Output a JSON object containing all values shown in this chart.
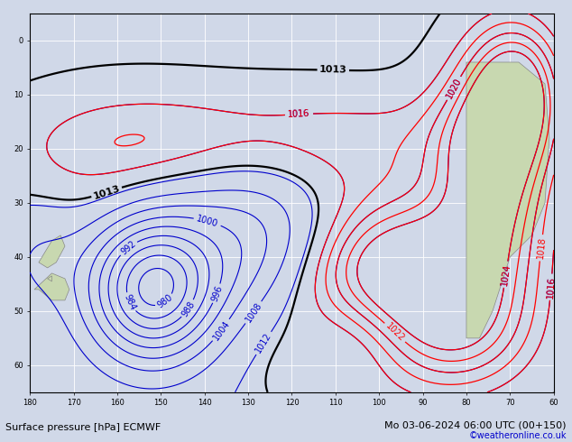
{
  "title_left": "Surface pressure [hPa] ECMWF",
  "title_right": "Mo 03-06-2024 06:00 UTC (00+150)",
  "copyright": "©weatheronline.co.uk",
  "bg_color": "#d0d8e8",
  "land_color": "#c8d8b0",
  "grid_color": "#ffffff",
  "lon_min": -180,
  "lon_max": -60,
  "lat_min": -65,
  "lat_max": 5,
  "label_fontsize": 7,
  "title_fontsize": 8,
  "copyright_fontsize": 7,
  "copyright_color": "#0000cc"
}
